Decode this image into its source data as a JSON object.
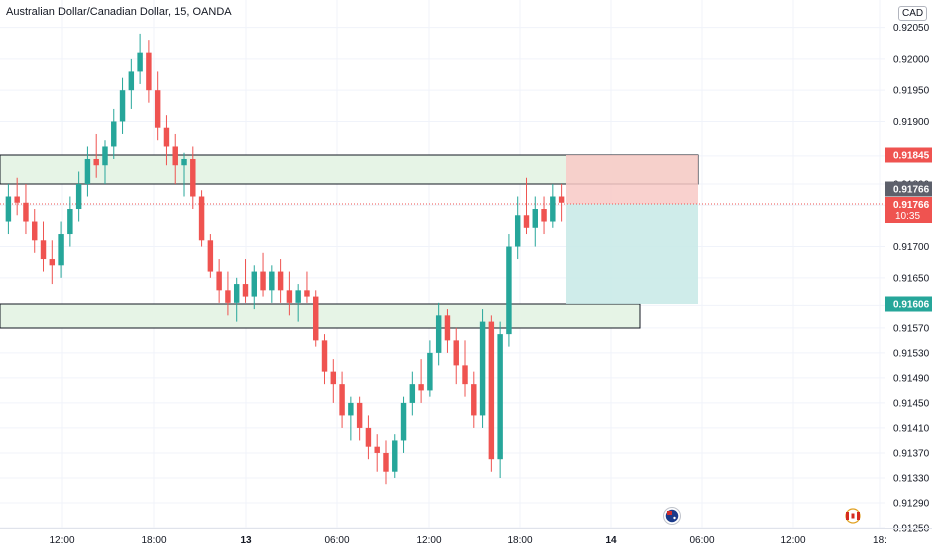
{
  "header": {
    "title": "Australian Dollar/Canadian Dollar, 15, OANDA",
    "currency_badge": "CAD"
  },
  "price_scale": {
    "labels": [
      "0.92050",
      "0.92000",
      "0.91950",
      "0.91900",
      "0.91845",
      "0.91800",
      "0.91766",
      "0.91700",
      "0.91650",
      "0.91606",
      "0.91570",
      "0.91530",
      "0.91490",
      "0.91450",
      "0.91410",
      "0.91370",
      "0.91330",
      "0.91290",
      "0.91250"
    ],
    "badges": {
      "stop_price": "0.91845",
      "last_price": "0.91766",
      "current_price": "0.91766",
      "countdown": "10:35",
      "target_price": "0.91606"
    }
  },
  "time_axis": {
    "labels": [
      "12:00",
      "18:00",
      "13",
      "06:00",
      "12:00",
      "18:00",
      "14",
      "06:00",
      "12:00",
      "18:"
    ]
  },
  "event_icons": [
    "australia-flag-icon",
    "canada-flag-icon"
  ],
  "colors": {
    "up": "#26a69a",
    "down": "#ef5350",
    "zone_fill": "#e6f4e6",
    "stop_fill": "#f8c9c6",
    "target_fill": "#c7e9e6",
    "axis_text": "#131722"
  },
  "chart_data": {
    "type": "candlestick",
    "symbol": "AUDCAD",
    "interval": "15",
    "ylim": [
      0.9125,
      0.92075
    ],
    "last_price": 0.91766,
    "candles": [
      [
        0.9174,
        0.918,
        0.9172,
        0.9178
      ],
      [
        0.9178,
        0.9181,
        0.9175,
        0.9177
      ],
      [
        0.9177,
        0.918,
        0.9172,
        0.9174
      ],
      [
        0.9174,
        0.9176,
        0.9169,
        0.9171
      ],
      [
        0.9171,
        0.9174,
        0.9166,
        0.9168
      ],
      [
        0.9168,
        0.9171,
        0.9164,
        0.9167
      ],
      [
        0.9167,
        0.9174,
        0.9165,
        0.9172
      ],
      [
        0.9172,
        0.9178,
        0.917,
        0.9176
      ],
      [
        0.9176,
        0.9182,
        0.9174,
        0.918
      ],
      [
        0.918,
        0.9186,
        0.9178,
        0.9184
      ],
      [
        0.9184,
        0.9188,
        0.9181,
        0.9183
      ],
      [
        0.9183,
        0.9187,
        0.918,
        0.9186
      ],
      [
        0.9186,
        0.9192,
        0.9184,
        0.919
      ],
      [
        0.919,
        0.9197,
        0.9188,
        0.9195
      ],
      [
        0.9195,
        0.92,
        0.9192,
        0.9198
      ],
      [
        0.9198,
        0.9204,
        0.9196,
        0.9201
      ],
      [
        0.9201,
        0.9203,
        0.9193,
        0.9195
      ],
      [
        0.9195,
        0.9198,
        0.9187,
        0.9189
      ],
      [
        0.9189,
        0.9191,
        0.9183,
        0.9186
      ],
      [
        0.9186,
        0.9188,
        0.918,
        0.9183
      ],
      [
        0.9183,
        0.9185,
        0.9178,
        0.9184
      ],
      [
        0.9184,
        0.9186,
        0.9176,
        0.9178
      ],
      [
        0.9178,
        0.9179,
        0.917,
        0.9171
      ],
      [
        0.9171,
        0.9172,
        0.9165,
        0.9166
      ],
      [
        0.9166,
        0.9168,
        0.9161,
        0.9163
      ],
      [
        0.9163,
        0.9166,
        0.9159,
        0.9161
      ],
      [
        0.9161,
        0.9165,
        0.9158,
        0.9164
      ],
      [
        0.9164,
        0.9168,
        0.9161,
        0.9162
      ],
      [
        0.9162,
        0.9167,
        0.916,
        0.9166
      ],
      [
        0.9166,
        0.9169,
        0.9162,
        0.9163
      ],
      [
        0.9163,
        0.9167,
        0.9161,
        0.9166
      ],
      [
        0.9166,
        0.9168,
        0.9161,
        0.9163
      ],
      [
        0.9163,
        0.9166,
        0.9159,
        0.9161
      ],
      [
        0.9161,
        0.9164,
        0.9158,
        0.9163
      ],
      [
        0.9163,
        0.9166,
        0.9161,
        0.9162
      ],
      [
        0.9162,
        0.9163,
        0.9154,
        0.9155
      ],
      [
        0.9155,
        0.9156,
        0.9148,
        0.915
      ],
      [
        0.915,
        0.9152,
        0.9145,
        0.9148
      ],
      [
        0.9148,
        0.915,
        0.9141,
        0.9143
      ],
      [
        0.9143,
        0.9146,
        0.9139,
        0.9145
      ],
      [
        0.9145,
        0.9146,
        0.9139,
        0.9141
      ],
      [
        0.9141,
        0.9143,
        0.9136,
        0.9138
      ],
      [
        0.9138,
        0.914,
        0.9134,
        0.9137
      ],
      [
        0.9137,
        0.9139,
        0.9132,
        0.9134
      ],
      [
        0.9134,
        0.914,
        0.9133,
        0.9139
      ],
      [
        0.9139,
        0.9146,
        0.9137,
        0.9145
      ],
      [
        0.9145,
        0.915,
        0.9143,
        0.9148
      ],
      [
        0.9148,
        0.9152,
        0.9145,
        0.9147
      ],
      [
        0.9147,
        0.9155,
        0.9146,
        0.9153
      ],
      [
        0.9153,
        0.9161,
        0.9151,
        0.9159
      ],
      [
        0.9159,
        0.916,
        0.9153,
        0.9155
      ],
      [
        0.9155,
        0.9157,
        0.9148,
        0.9151
      ],
      [
        0.9151,
        0.9155,
        0.9146,
        0.9148
      ],
      [
        0.9148,
        0.915,
        0.9141,
        0.9143
      ],
      [
        0.9143,
        0.916,
        0.9141,
        0.9158
      ],
      [
        0.9158,
        0.9159,
        0.9134,
        0.9136
      ],
      [
        0.9136,
        0.9158,
        0.9133,
        0.9156
      ],
      [
        0.9156,
        0.9172,
        0.9154,
        0.917
      ],
      [
        0.917,
        0.9178,
        0.9168,
        0.9175
      ],
      [
        0.9175,
        0.9181,
        0.9172,
        0.9173
      ],
      [
        0.9173,
        0.9178,
        0.917,
        0.9176
      ],
      [
        0.9176,
        0.9178,
        0.9172,
        0.9174
      ],
      [
        0.9174,
        0.918,
        0.9173,
        0.9178
      ],
      [
        0.9178,
        0.918,
        0.9174,
        0.9177
      ]
    ]
  }
}
